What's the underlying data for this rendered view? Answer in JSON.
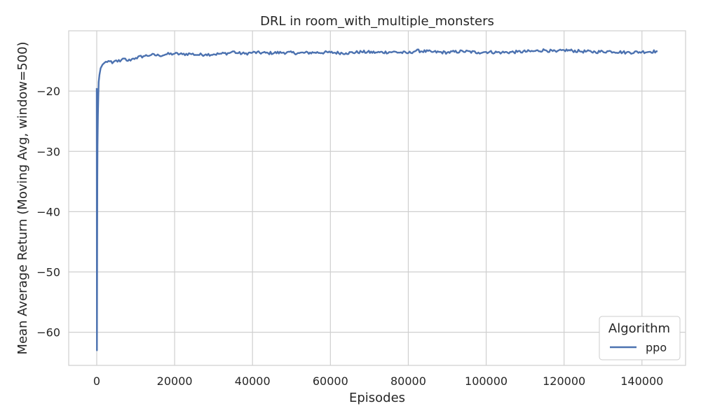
{
  "chart_data": {
    "type": "line",
    "title": "DRL in room_with_multiple_monsters",
    "xlabel": "Episodes",
    "ylabel": "Mean Average Return (Moving Avg, window=500)",
    "xlim": [
      -7200,
      151200
    ],
    "ylim": [
      -65.5,
      -10.0
    ],
    "xticks": [
      0,
      20000,
      40000,
      60000,
      80000,
      100000,
      120000,
      140000
    ],
    "xtick_labels": [
      "0",
      "20000",
      "40000",
      "60000",
      "80000",
      "100000",
      "120000",
      "140000"
    ],
    "yticks": [
      -60,
      -50,
      -40,
      -30,
      -20
    ],
    "ytick_labels": [
      "−60",
      "−50",
      "−40",
      "−30",
      "−20"
    ],
    "grid": true,
    "legend": {
      "title": "Algorithm",
      "position": "lower-right"
    },
    "series": [
      {
        "name": "ppo",
        "color": "#4c72b0",
        "x": [
          0,
          50,
          100,
          150,
          200,
          300,
          400,
          500,
          700,
          1000,
          1500,
          2000,
          3000,
          4000,
          5000,
          6000,
          7000,
          8000,
          9000,
          10000,
          12000,
          14000,
          16000,
          18000,
          20000,
          22000,
          24000,
          26000,
          28000,
          30000,
          32000,
          34000,
          35000,
          36000,
          38000,
          40000,
          44000,
          48000,
          52000,
          56000,
          60000,
          64000,
          68000,
          72000,
          76000,
          80000,
          82000,
          86000,
          90000,
          94000,
          98000,
          100000,
          104000,
          108000,
          112000,
          115000,
          118000,
          120000,
          124000,
          128000,
          132000,
          136000,
          140000,
          144000
        ],
        "y": [
          -19.5,
          -63.0,
          -47.0,
          -35.0,
          -29.0,
          -24.0,
          -21.0,
          -18.5,
          -17.3,
          -16.2,
          -15.6,
          -15.3,
          -15.0,
          -15.4,
          -14.9,
          -15.1,
          -14.6,
          -15.0,
          -14.7,
          -14.5,
          -14.2,
          -14.0,
          -14.1,
          -13.9,
          -13.8,
          -13.9,
          -13.8,
          -14.0,
          -13.9,
          -13.9,
          -13.8,
          -13.7,
          -13.4,
          -13.7,
          -13.8,
          -13.6,
          -13.7,
          -13.6,
          -13.7,
          -13.6,
          -13.6,
          -13.7,
          -13.5,
          -13.6,
          -13.5,
          -13.7,
          -13.3,
          -13.5,
          -13.6,
          -13.4,
          -13.6,
          -13.5,
          -13.6,
          -13.5,
          -13.4,
          -13.2,
          -13.5,
          -13.2,
          -13.4,
          -13.5,
          -13.4,
          -13.6,
          -13.5,
          -13.4
        ]
      }
    ]
  }
}
